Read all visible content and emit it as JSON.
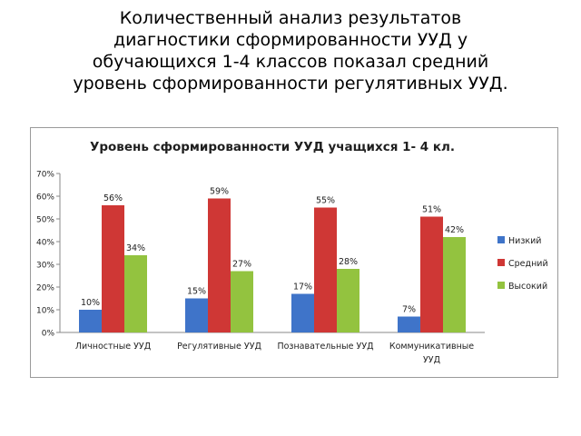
{
  "slide": {
    "heading_lines": [
      "Количественный анализ результатов",
      "диагностики сформированности УУД у",
      "обучающихся 1-4 классов показал средний",
      "уровень сформированности регулятивных УУД."
    ]
  },
  "chart_data": {
    "type": "bar",
    "title": "Уровень сформированности УУД учащихся 1- 4 кл.",
    "categories": [
      [
        "Личностные УУД"
      ],
      [
        "Регулятивные УУД"
      ],
      [
        "Познавательные УУД"
      ],
      [
        "Коммуникативные",
        "УУД"
      ]
    ],
    "series": [
      {
        "name": "Низкий",
        "color": "#3f74c9",
        "values": [
          10,
          15,
          17,
          7
        ],
        "labels": [
          "10%",
          "15%",
          "17%",
          "7%"
        ]
      },
      {
        "name": "Средний",
        "color": "#cf3735",
        "values": [
          56,
          59,
          55,
          51
        ],
        "labels": [
          "56%",
          "59%",
          "55%",
          "51%"
        ]
      },
      {
        "name": "Высокий",
        "color": "#93c33f",
        "values": [
          34,
          27,
          28,
          42
        ],
        "labels": [
          "34%",
          "27%",
          "28%",
          "42%"
        ]
      }
    ],
    "ylim": [
      0,
      70
    ],
    "yticks": [
      0,
      10,
      20,
      30,
      40,
      50,
      60,
      70
    ],
    "ytick_labels": [
      "0%",
      "10%",
      "20%",
      "30%",
      "40%",
      "50%",
      "60%",
      "70%"
    ],
    "grid": false,
    "legend_position": "right"
  }
}
